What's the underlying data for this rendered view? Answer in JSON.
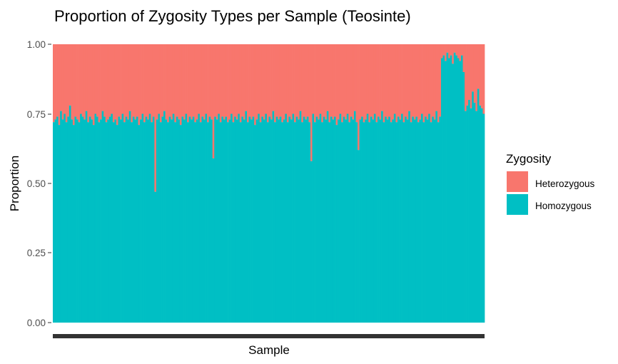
{
  "chart_data": {
    "type": "bar",
    "stacked": true,
    "title": "Proportion of Zygosity Types per Sample (Teosinte)",
    "xlabel": "Sample",
    "ylabel": "Proportion",
    "ylim": [
      0,
      1
    ],
    "yticks": [
      "0.00",
      "0.25",
      "0.50",
      "0.75",
      "1.00"
    ],
    "x_tick_labels": "none (samples densely packed, labels overplotted into a solid bar)",
    "grid": false,
    "legend": {
      "title": "Zygosity",
      "placement": "right",
      "entries": [
        {
          "label": "Heterozygous",
          "color": "#F8766D"
        },
        {
          "label": "Homozygous",
          "color": "#00BFC4"
        }
      ]
    },
    "series": [
      {
        "name": "Homozygous",
        "color": "#00BFC4",
        "values": [
          0.72,
          0.73,
          0.74,
          0.71,
          0.76,
          0.73,
          0.75,
          0.72,
          0.74,
          0.78,
          0.73,
          0.71,
          0.74,
          0.73,
          0.72,
          0.75,
          0.74,
          0.73,
          0.76,
          0.72,
          0.74,
          0.73,
          0.71,
          0.75,
          0.74,
          0.72,
          0.73,
          0.76,
          0.74,
          0.72,
          0.73,
          0.74,
          0.75,
          0.72,
          0.73,
          0.71,
          0.74,
          0.73,
          0.75,
          0.72,
          0.74,
          0.73,
          0.76,
          0.72,
          0.74,
          0.73,
          0.74,
          0.71,
          0.73,
          0.75,
          0.72,
          0.74,
          0.73,
          0.75,
          0.72,
          0.74,
          0.47,
          0.73,
          0.75,
          0.72,
          0.74,
          0.76,
          0.73,
          0.72,
          0.74,
          0.73,
          0.75,
          0.72,
          0.74,
          0.73,
          0.71,
          0.74,
          0.73,
          0.75,
          0.72,
          0.74,
          0.73,
          0.74,
          0.72,
          0.73,
          0.75,
          0.72,
          0.74,
          0.73,
          0.75,
          0.72,
          0.74,
          0.73,
          0.59,
          0.74,
          0.73,
          0.75,
          0.72,
          0.74,
          0.73,
          0.74,
          0.72,
          0.73,
          0.75,
          0.72,
          0.74,
          0.73,
          0.75,
          0.72,
          0.74,
          0.73,
          0.76,
          0.72,
          0.74,
          0.73,
          0.74,
          0.71,
          0.73,
          0.75,
          0.72,
          0.74,
          0.73,
          0.75,
          0.72,
          0.74,
          0.73,
          0.76,
          0.72,
          0.74,
          0.73,
          0.74,
          0.72,
          0.73,
          0.75,
          0.72,
          0.74,
          0.73,
          0.75,
          0.72,
          0.74,
          0.73,
          0.76,
          0.72,
          0.74,
          0.73,
          0.74,
          0.72,
          0.58,
          0.75,
          0.72,
          0.74,
          0.73,
          0.75,
          0.72,
          0.74,
          0.73,
          0.76,
          0.72,
          0.74,
          0.73,
          0.74,
          0.71,
          0.73,
          0.75,
          0.72,
          0.74,
          0.73,
          0.75,
          0.72,
          0.74,
          0.73,
          0.76,
          0.72,
          0.62,
          0.73,
          0.74,
          0.72,
          0.73,
          0.75,
          0.72,
          0.74,
          0.73,
          0.75,
          0.72,
          0.74,
          0.73,
          0.76,
          0.72,
          0.74,
          0.73,
          0.74,
          0.72,
          0.73,
          0.75,
          0.72,
          0.74,
          0.73,
          0.75,
          0.72,
          0.74,
          0.73,
          0.76,
          0.72,
          0.74,
          0.73,
          0.74,
          0.72,
          0.73,
          0.75,
          0.72,
          0.74,
          0.73,
          0.75,
          0.72,
          0.74,
          0.73,
          0.76,
          0.72,
          0.74,
          0.95,
          0.96,
          0.94,
          0.97,
          0.95,
          0.96,
          0.93,
          0.97,
          0.96,
          0.95,
          0.94,
          0.96,
          0.9,
          0.76,
          0.78,
          0.8,
          0.77,
          0.83,
          0.79,
          0.76,
          0.84,
          0.78,
          0.77,
          0.75
        ]
      },
      {
        "name": "Heterozygous",
        "color": "#F8766D",
        "values": "remainder to 1.00 for each sample"
      }
    ]
  }
}
